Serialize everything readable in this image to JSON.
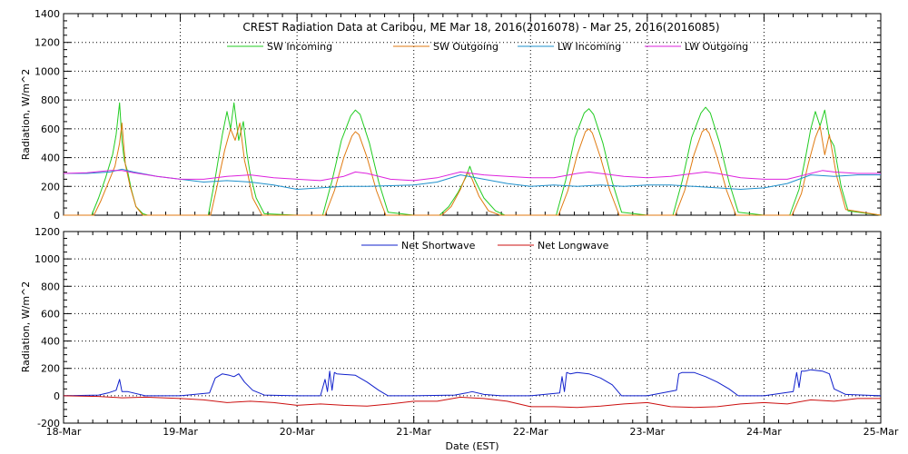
{
  "chart_data": [
    {
      "type": "line",
      "title": "CREST Radiation Data at Caribou, ME   Mar 18, 2016(2016078) - Mar 25, 2016(2016085)",
      "ylabel": "Radiation, W/m^2",
      "xlabel": "",
      "xlim": [
        0,
        7
      ],
      "ylim": [
        0,
        1400
      ],
      "yticks": [
        0,
        200,
        400,
        600,
        800,
        1000,
        1200,
        1400
      ],
      "grid": true,
      "legend_position": "top-center",
      "x_unit": "days since 18-Mar",
      "series": [
        {
          "name": "SW Incoming",
          "color": "#22cc22",
          "x": [
            0,
            0.24,
            0.3,
            0.36,
            0.42,
            0.45,
            0.48,
            0.5,
            0.52,
            0.55,
            0.58,
            0.62,
            0.68,
            0.72,
            1,
            1.24,
            1.3,
            1.36,
            1.4,
            1.43,
            1.46,
            1.5,
            1.54,
            1.57,
            1.6,
            1.65,
            1.72,
            2,
            2.22,
            2.3,
            2.38,
            2.46,
            2.5,
            2.54,
            2.62,
            2.7,
            2.78,
            3,
            3.22,
            3.3,
            3.38,
            3.45,
            3.48,
            3.52,
            3.6,
            3.7,
            3.78,
            4,
            4.22,
            4.3,
            4.38,
            4.46,
            4.5,
            4.54,
            4.62,
            4.7,
            4.78,
            5,
            5.22,
            5.3,
            5.38,
            5.46,
            5.5,
            5.54,
            5.62,
            5.7,
            5.78,
            6,
            6.22,
            6.3,
            6.36,
            6.4,
            6.44,
            6.48,
            6.52,
            6.56,
            6.6,
            6.66,
            6.72,
            7
          ],
          "y": [
            0,
            0,
            120,
            260,
            420,
            560,
            780,
            520,
            380,
            300,
            180,
            60,
            10,
            0,
            0,
            0,
            260,
            560,
            720,
            600,
            780,
            520,
            650,
            430,
            280,
            120,
            10,
            0,
            0,
            240,
            520,
            690,
            730,
            700,
            500,
            230,
            20,
            0,
            0,
            60,
            160,
            270,
            340,
            250,
            120,
            30,
            0,
            0,
            0,
            240,
            540,
            710,
            740,
            700,
            500,
            230,
            20,
            0,
            0,
            240,
            540,
            710,
            750,
            710,
            500,
            230,
            20,
            0,
            0,
            180,
            420,
            600,
            720,
            620,
            730,
            540,
            480,
            200,
            30,
            0
          ]
        },
        {
          "name": "SW Outgoing",
          "color": "#e07a10",
          "x": [
            0,
            0.26,
            0.32,
            0.38,
            0.44,
            0.48,
            0.5,
            0.53,
            0.57,
            0.62,
            0.68,
            1,
            1.26,
            1.32,
            1.38,
            1.43,
            1.47,
            1.51,
            1.55,
            1.58,
            1.62,
            1.7,
            2,
            2.24,
            2.32,
            2.4,
            2.47,
            2.5,
            2.53,
            2.6,
            2.68,
            2.76,
            3,
            3.24,
            3.32,
            3.4,
            3.46,
            3.5,
            3.56,
            3.64,
            3.74,
            4,
            4.24,
            4.32,
            4.4,
            4.47,
            4.5,
            4.53,
            4.6,
            4.68,
            4.76,
            5,
            5.24,
            5.32,
            5.4,
            5.47,
            5.5,
            5.53,
            5.6,
            5.68,
            5.76,
            6,
            6.24,
            6.32,
            6.38,
            6.44,
            6.48,
            6.52,
            6.56,
            6.62,
            6.7,
            7
          ],
          "y": [
            0,
            0,
            100,
            220,
            340,
            500,
            640,
            350,
            200,
            60,
            0,
            0,
            0,
            220,
            450,
            600,
            520,
            640,
            380,
            280,
            120,
            0,
            0,
            0,
            170,
            400,
            550,
            580,
            560,
            400,
            170,
            0,
            0,
            0,
            60,
            180,
            300,
            250,
            130,
            30,
            0,
            0,
            0,
            170,
            420,
            580,
            600,
            570,
            400,
            170,
            0,
            0,
            0,
            170,
            420,
            580,
            600,
            570,
            400,
            170,
            0,
            0,
            0,
            150,
            360,
            540,
            620,
            420,
            560,
            280,
            40,
            0
          ]
        },
        {
          "name": "LW Incoming",
          "color": "#1e90cc",
          "x": [
            0,
            0.2,
            0.4,
            0.5,
            0.6,
            0.8,
            1,
            1.2,
            1.4,
            1.6,
            1.8,
            2,
            2.2,
            2.4,
            2.6,
            2.8,
            3,
            3.2,
            3.4,
            3.6,
            3.8,
            4,
            4.2,
            4.4,
            4.6,
            4.8,
            5,
            5.2,
            5.4,
            5.6,
            5.8,
            6,
            6.2,
            6.4,
            6.6,
            6.8,
            7
          ],
          "y": [
            290,
            290,
            300,
            320,
            300,
            270,
            250,
            230,
            240,
            230,
            210,
            180,
            190,
            200,
            200,
            205,
            210,
            230,
            280,
            250,
            220,
            200,
            210,
            200,
            210,
            200,
            210,
            210,
            200,
            190,
            180,
            190,
            220,
            280,
            270,
            280,
            280
          ]
        },
        {
          "name": "LW Outgoing",
          "color": "#dd22dd",
          "x": [
            0,
            0.2,
            0.4,
            0.5,
            0.6,
            0.8,
            1,
            1.2,
            1.4,
            1.6,
            1.8,
            2,
            2.2,
            2.4,
            2.5,
            2.6,
            2.8,
            3,
            3.2,
            3.4,
            3.6,
            3.8,
            4,
            4.2,
            4.4,
            4.5,
            4.6,
            4.8,
            5,
            5.2,
            5.4,
            5.5,
            5.6,
            5.8,
            6,
            6.2,
            6.4,
            6.5,
            6.6,
            6.8,
            7
          ],
          "y": [
            290,
            295,
            310,
            310,
            295,
            270,
            250,
            250,
            270,
            280,
            260,
            250,
            240,
            270,
            300,
            290,
            250,
            240,
            260,
            300,
            280,
            270,
            260,
            260,
            290,
            300,
            290,
            270,
            260,
            270,
            290,
            300,
            290,
            260,
            250,
            250,
            290,
            310,
            300,
            290,
            290
          ]
        }
      ]
    },
    {
      "type": "line",
      "title": "",
      "ylabel": "Radiation, W/m^2",
      "xlabel": "Date (EST)",
      "xlim": [
        0,
        7
      ],
      "ylim": [
        -200,
        1200
      ],
      "yticks": [
        -200,
        0,
        200,
        400,
        600,
        800,
        1000,
        1200
      ],
      "xtick_labels": [
        "18-Mar",
        "19-Mar",
        "20-Mar",
        "21-Mar",
        "22-Mar",
        "23-Mar",
        "24-Mar",
        "25-Mar"
      ],
      "grid": true,
      "legend_position": "top-center",
      "x_unit": "days since 18-Mar",
      "series": [
        {
          "name": "Net Shortwave",
          "color": "#1020cc",
          "x": [
            0,
            0.3,
            0.38,
            0.45,
            0.48,
            0.5,
            0.55,
            0.7,
            1,
            1.25,
            1.3,
            1.36,
            1.42,
            1.46,
            1.5,
            1.55,
            1.62,
            1.72,
            2,
            2.2,
            2.24,
            2.26,
            2.28,
            2.3,
            2.32,
            2.34,
            2.5,
            2.6,
            2.7,
            2.78,
            3,
            3.35,
            3.45,
            3.5,
            3.6,
            3.75,
            4,
            4.25,
            4.27,
            4.29,
            4.31,
            4.34,
            4.4,
            4.5,
            4.6,
            4.7,
            4.78,
            5,
            5.25,
            5.27,
            5.3,
            5.4,
            5.5,
            5.6,
            5.7,
            5.78,
            6,
            6.25,
            6.28,
            6.3,
            6.32,
            6.35,
            6.4,
            6.5,
            6.56,
            6.6,
            6.7,
            7
          ],
          "y": [
            0,
            5,
            20,
            40,
            120,
            30,
            30,
            0,
            0,
            20,
            130,
            160,
            150,
            140,
            160,
            100,
            40,
            5,
            0,
            0,
            120,
            30,
            180,
            40,
            170,
            160,
            150,
            100,
            40,
            0,
            0,
            5,
            20,
            30,
            10,
            0,
            0,
            20,
            140,
            30,
            170,
            160,
            170,
            160,
            130,
            80,
            0,
            0,
            40,
            160,
            170,
            170,
            140,
            100,
            50,
            0,
            0,
            30,
            170,
            60,
            180,
            180,
            190,
            180,
            160,
            50,
            10,
            0
          ]
        },
        {
          "name": "Net Longwave",
          "color": "#cc1010",
          "x": [
            0,
            0.3,
            0.5,
            0.7,
            1,
            1.2,
            1.4,
            1.6,
            1.8,
            2,
            2.2,
            2.4,
            2.6,
            2.8,
            3,
            3.2,
            3.4,
            3.6,
            3.8,
            4,
            4.2,
            4.4,
            4.6,
            4.8,
            5,
            5.2,
            5.4,
            5.6,
            5.8,
            6,
            6.2,
            6.4,
            6.6,
            6.8,
            7
          ],
          "y": [
            0,
            -5,
            -15,
            -10,
            -20,
            -30,
            -50,
            -40,
            -50,
            -70,
            -60,
            -70,
            -75,
            -60,
            -40,
            -40,
            -10,
            -20,
            -40,
            -80,
            -80,
            -85,
            -75,
            -60,
            -50,
            -80,
            -85,
            -80,
            -60,
            -50,
            -60,
            -30,
            -40,
            -20,
            -20
          ]
        }
      ]
    }
  ]
}
